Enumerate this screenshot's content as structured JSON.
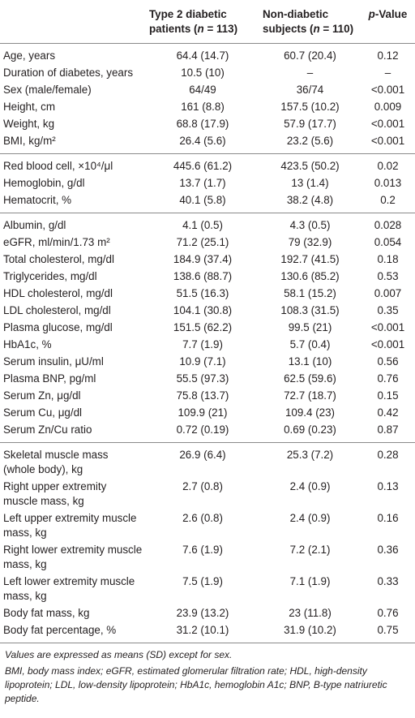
{
  "table": {
    "header": [
      [
        "Type 2 diabetic patients (",
        "n",
        " = 113)"
      ],
      [
        "Non-diabetic subjects (",
        "n",
        " = 110)"
      ],
      [
        "p",
        "-Value"
      ]
    ],
    "groups": [
      [
        [
          "Age, years",
          "64.4 (14.7)",
          "60.7 (20.4)",
          "0.12"
        ],
        [
          "Duration of diabetes, years",
          "10.5 (10)",
          "–",
          "–"
        ],
        [
          "Sex (male/female)",
          "64/49",
          "36/74",
          "<0.001"
        ],
        [
          "Height, cm",
          "161 (8.8)",
          "157.5 (10.2)",
          "0.009"
        ],
        [
          "Weight, kg",
          "68.8 (17.9)",
          "57.9 (17.7)",
          "<0.001"
        ],
        [
          "BMI, kg/m²",
          "26.4 (5.6)",
          "23.2 (5.6)",
          "<0.001"
        ]
      ],
      [
        [
          "Red blood cell, ×10⁴/μl",
          "445.6 (61.2)",
          "423.5 (50.2)",
          "0.02"
        ],
        [
          "Hemoglobin, g/dl",
          "13.7 (1.7)",
          "13 (1.4)",
          "0.013"
        ],
        [
          "Hematocrit, %",
          "40.1 (5.8)",
          "38.2 (4.8)",
          "0.2"
        ]
      ],
      [
        [
          "Albumin, g/dl",
          "4.1 (0.5)",
          "4.3 (0.5)",
          "0.028"
        ],
        [
          "eGFR, ml/min/1.73 m²",
          "71.2 (25.1)",
          "79 (32.9)",
          "0.054"
        ],
        [
          "Total cholesterol, mg/dl",
          "184.9 (37.4)",
          "192.7 (41.5)",
          "0.18"
        ],
        [
          "Triglycerides, mg/dl",
          "138.6 (88.7)",
          "130.6 (85.2)",
          "0.53"
        ],
        [
          "HDL cholesterol, mg/dl",
          "51.5 (16.3)",
          "58.1 (15.2)",
          "0.007"
        ],
        [
          "LDL cholesterol, mg/dl",
          "104.1 (30.8)",
          "108.3 (31.5)",
          "0.35"
        ],
        [
          "Plasma glucose, mg/dl",
          "151.5 (62.2)",
          "99.5 (21)",
          "<0.001"
        ],
        [
          "HbA1c, %",
          "7.7 (1.9)",
          "5.7 (0.4)",
          "<0.001"
        ],
        [
          "Serum insulin, μU/ml",
          "10.9 (7.1)",
          "13.1 (10)",
          "0.56"
        ],
        [
          "Plasma BNP, pg/ml",
          "55.5 (97.3)",
          "62.5 (59.6)",
          "0.76"
        ],
        [
          "Serum Zn, μg/dl",
          "75.8 (13.7)",
          "72.7 (18.7)",
          "0.15"
        ],
        [
          "Serum Cu, μg/dl",
          "109.9 (21)",
          "109.4 (23)",
          "0.42"
        ],
        [
          "Serum Zn/Cu ratio",
          "0.72 (0.19)",
          "0.69 (0.23)",
          "0.87"
        ]
      ],
      [
        [
          "Skeletal muscle mass (whole body), kg",
          "26.9 (6.4)",
          "25.3 (7.2)",
          "0.28"
        ],
        [
          "Right upper extremity muscle mass, kg",
          "2.7 (0.8)",
          "2.4 (0.9)",
          "0.13"
        ],
        [
          "Left upper extremity muscle mass, kg",
          "2.6 (0.8)",
          "2.4 (0.9)",
          "0.16"
        ],
        [
          "Right lower extremity muscle mass, kg",
          "7.6 (1.9)",
          "7.2 (2.1)",
          "0.36"
        ],
        [
          "Left lower extremity muscle mass, kg",
          "7.5 (1.9)",
          "7.1 (1.9)",
          "0.33"
        ],
        [
          "Body fat mass, kg",
          "23.9 (13.2)",
          "23 (11.8)",
          "0.76"
        ],
        [
          "Body fat percentage, %",
          "31.2 (10.1)",
          "31.9 (10.2)",
          "0.75"
        ]
      ]
    ],
    "footnotes": [
      "Values are expressed as means (SD) except for sex.",
      "BMI, body mass index; eGFR, estimated glomerular filtration rate; HDL, high-density lipoprotein; LDL, low-density lipoprotein; HbA1c, hemoglobin A1c; BNP, B-type natriuretic peptide."
    ]
  }
}
